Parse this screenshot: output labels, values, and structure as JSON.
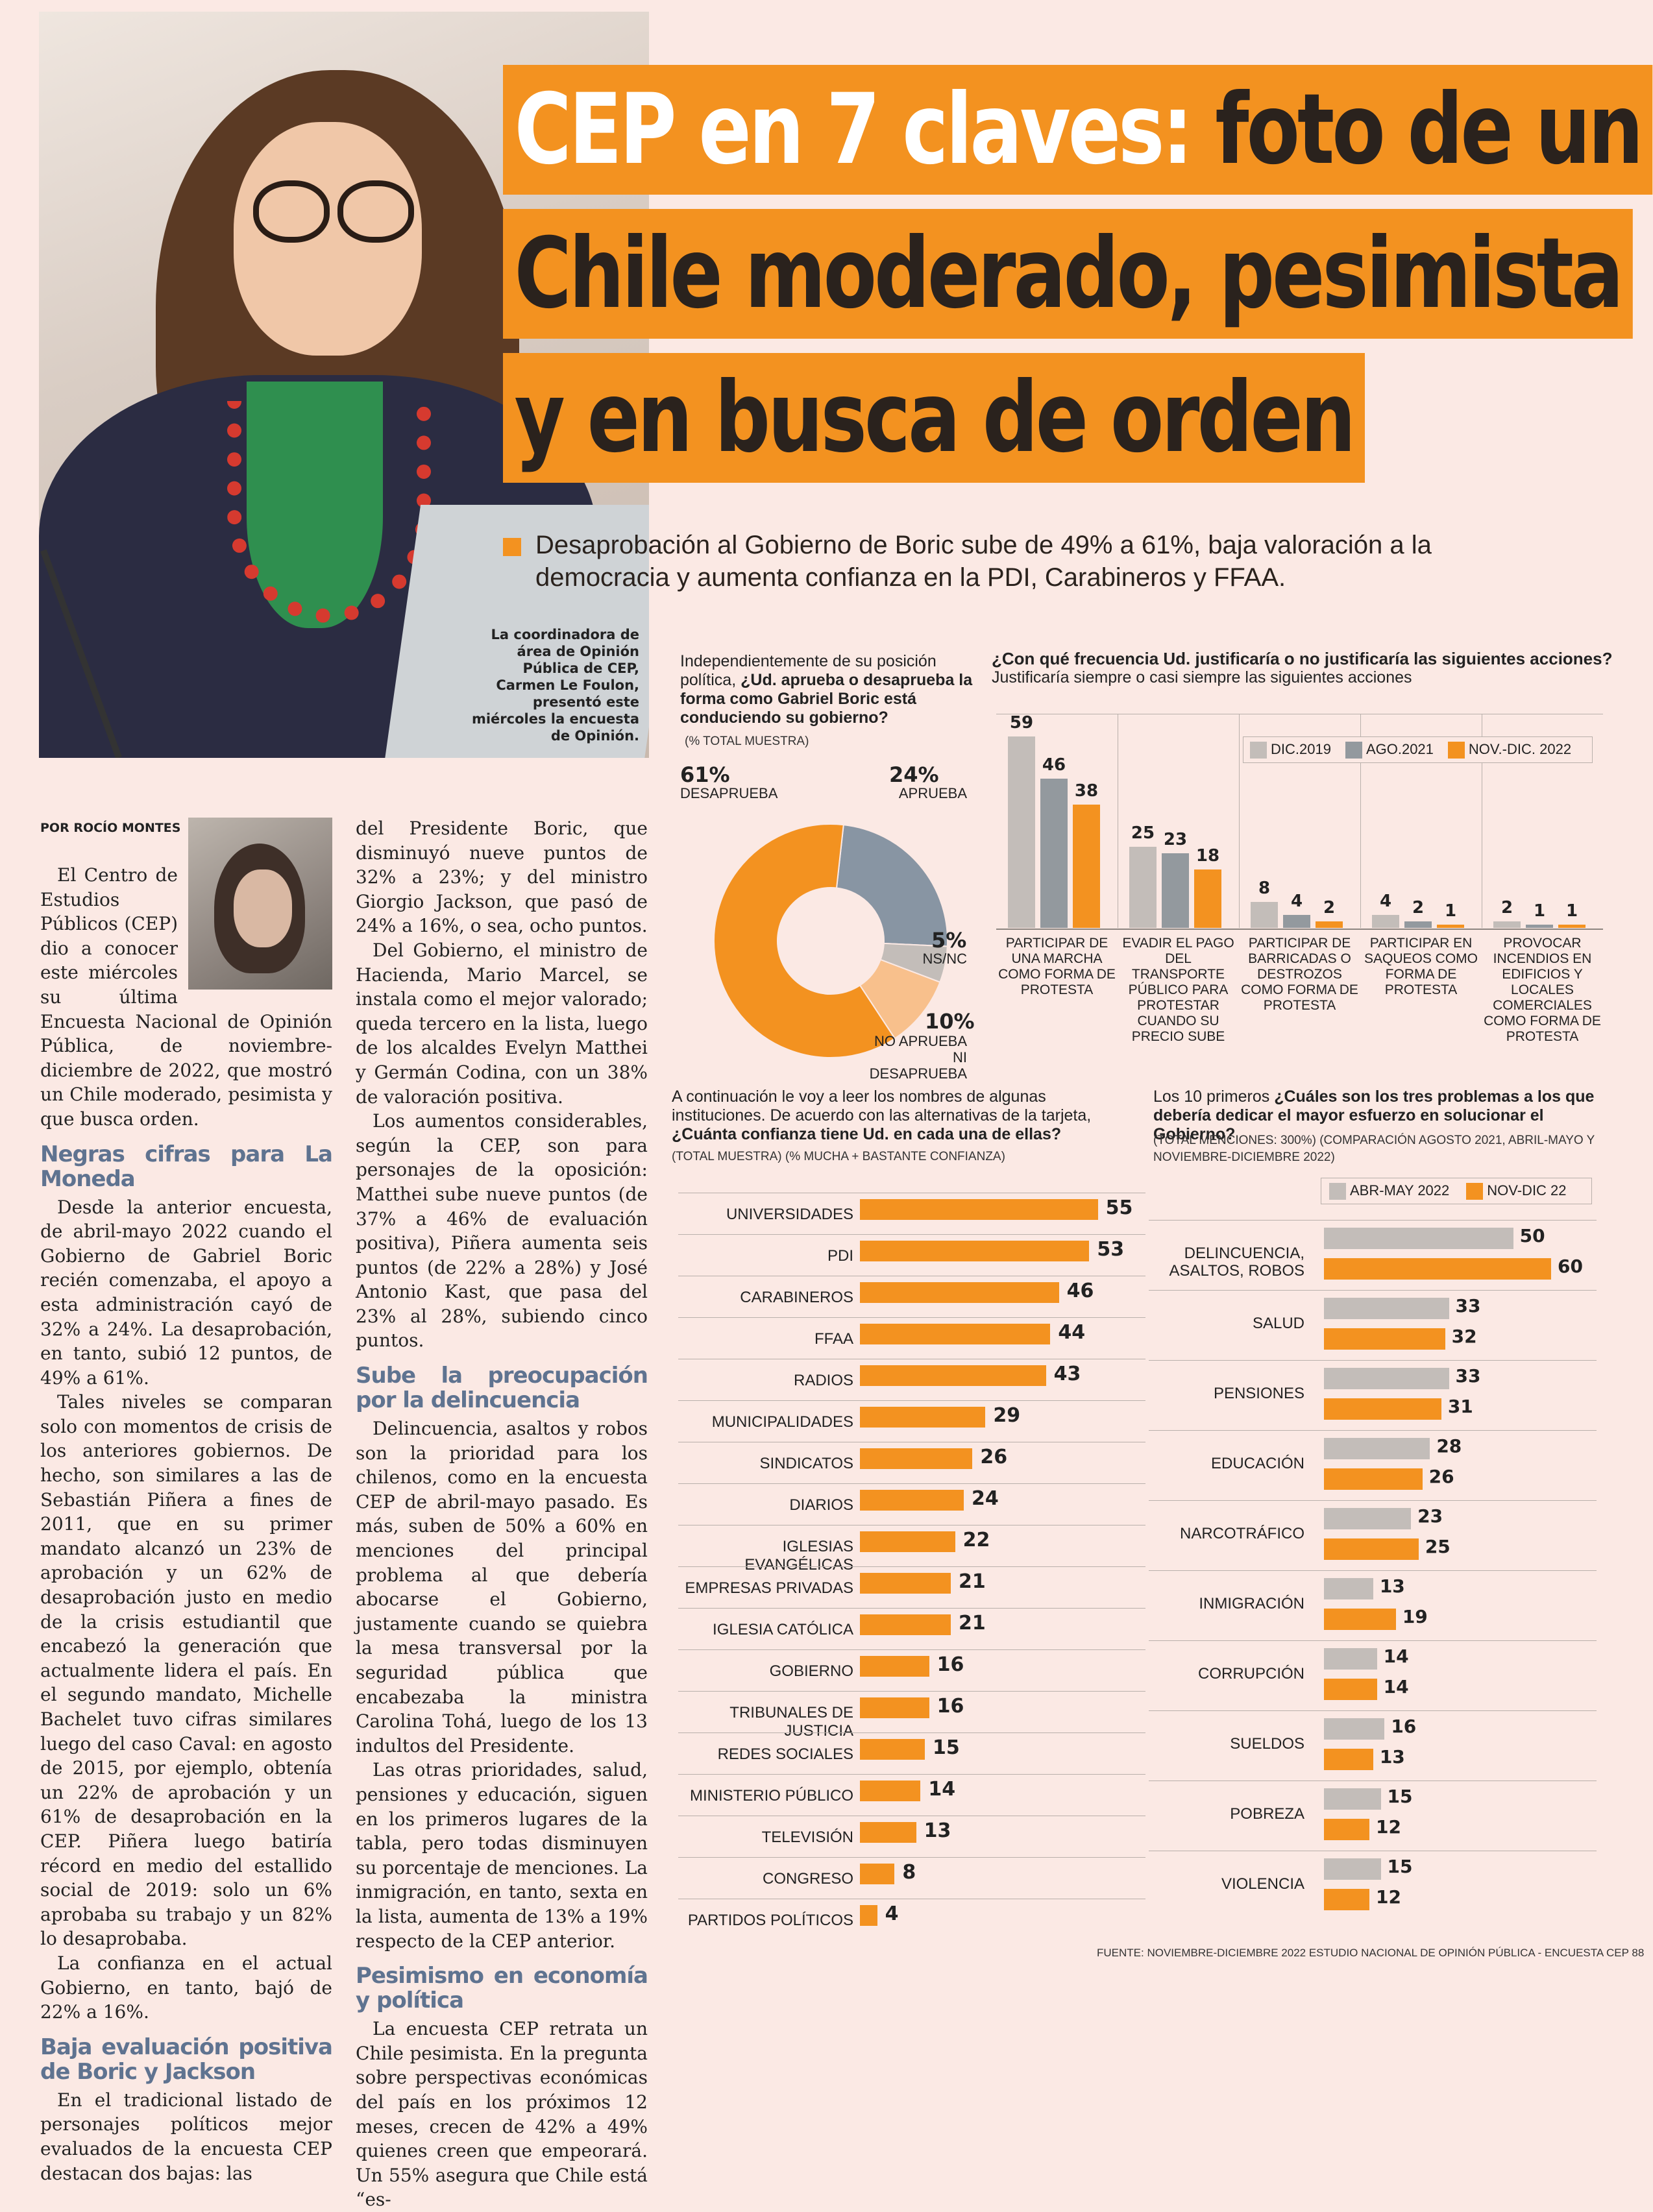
{
  "headline": {
    "line1_white": "CEP en 7 claves:",
    "line1_dark": "foto de un",
    "line2": "Chile moderado, pesimista",
    "line3": "y en busca de orden"
  },
  "subhead": "Desaprobación al Gobierno de Boric sube de 49% a 61%, baja valoración a la democracia y aumenta confianza en la PDI, Carabineros y FFAA.",
  "photo_caption": "La coordinadora de área de Opinión Pública de CEP, Carmen Le Foulon, presentó este miércoles la encuesta de Opinión.",
  "byline": "POR ROCÍO MONTES",
  "article": {
    "col1_p1": "El Centro de Estudios Públicos (CEP) dio a conocer este miércoles su última Encuesta Nacional de Opinión Pública, de noviembre-diciembre de 2022, que mostró un Chile moderado, pesimista y que busca orden.",
    "h_negras": "Negras cifras para La Moneda",
    "col1_p2": "Desde la anterior encuesta, de abril-mayo 2022 cuando el Gobierno de Gabriel Boric recién comenzaba, el apoyo a esta administración cayó de 32% a 24%. La desaprobación, en tanto, subió 12 puntos, de 49% a 61%.",
    "col1_p3": "Tales niveles se comparan solo con momentos de crisis de los anteriores gobiernos. De hecho, son similares a las de Sebastián Piñera a fines de 2011, que en su primer mandato alcanzó un 23% de aprobación y un 62% de desaprobación justo en medio de la crisis estudiantil que encabezó la generación que actualmente lidera el país. En el segundo mandato, Michelle Bachelet tuvo cifras similares luego del caso Caval: en agosto de 2015, por ejemplo, obtenía un 22% de aprobación y un 61% de desaprobación en la CEP. Piñera luego batiría récord en medio del estallido social de 2019: solo un 6% aprobaba su trabajo y un 82% lo desaprobaba.",
    "col1_p4": "La confianza en el actual Gobierno, en tanto, bajó de 22% a 16%.",
    "h_baja": "Baja evaluación positiva de Boric y Jackson",
    "col1_p5": "En el tradicional listado de personajes políticos mejor evaluados de la encuesta CEP destacan dos bajas: las",
    "col2_p1": "del Presidente Boric, que disminuyó nueve puntos de 32% a 23%; y del ministro Giorgio Jackson, que pasó de 24% a 16%, o sea, ocho puntos.",
    "col2_p2": "Del Gobierno, el ministro de Hacienda, Mario Marcel, se instala como el mejor valorado; queda tercero en la lista, luego de los alcaldes Evelyn Matthei y Germán Codina, con un 38% de valoración positiva.",
    "col2_p3": "Los aumentos considerables, según la CEP, son para personajes de la oposición: Matthei sube nueve puntos (de 37% a 46% de evaluación positiva), Piñera aumenta seis puntos (de 22% a 28%) y José Antonio Kast, que pasa del 23% al 28%, subiendo cinco puntos.",
    "h_sube": "Sube la preocupación por la delincuencia",
    "col2_p4": "Delincuencia, asaltos y robos son la prioridad para los chilenos, como en la encuesta CEP de abril-mayo pasado. Es más, suben de 50% a 60% en menciones del principal problema al que debería abocarse el Gobierno, justamente cuando se quiebra la mesa transversal por la seguridad pública que encabezaba la ministra Carolina Tohá, luego de los 13 indultos del Presidente.",
    "col2_p5": "Las otras prioridades, salud, pensiones y educación, siguen en los primeros lugares de la tabla, pero todas disminuyen su porcentaje de menciones. La inmigración, en tanto, sexta en la lista, aumenta de 13% a 19% respecto de la CEP anterior.",
    "h_pesimismo": "Pesimismo en economía y política",
    "col2_p6": "La encuesta CEP retrata un Chile pesimista. En la pregunta sobre perspectivas económicas del país en los próximos 12 meses, crecen de 42% a 49% quienes creen que empeorará. Un 55% asegura que Chile está “es-"
  },
  "colors": {
    "orange": "#f39220",
    "dark_gray": "#93999e",
    "slate": "#8895a3",
    "light_gray": "#c3bdb9",
    "pale_orange": "#f8c08c"
  },
  "chart_data": [
    {
      "type": "pie",
      "title": "Independientemente de su posición política, ¿Ud. aprueba o desaprueba la forma como Gabriel Boric está conduciendo su gobierno?",
      "title_plain": "Independientemente de su posición política,",
      "title_bold": "¿Ud. aprueba o desaprueba la forma como Gabriel Boric está conduciendo su gobierno?",
      "subtitle": "(% TOTAL MUESTRA)",
      "slices": [
        {
          "label": "APRUEBA",
          "value": 24,
          "value_label": "24%",
          "color": "#8895a3"
        },
        {
          "label": "NS/NC",
          "value": 5,
          "value_label": "5%",
          "color": "#c3bdb9"
        },
        {
          "label": "NO APRUEBA NI DESAPRUEBA",
          "value": 10,
          "value_label": "10%",
          "color": "#f8c08c"
        },
        {
          "label": "DESAPRUEBA",
          "value": 61,
          "value_label": "61%",
          "color": "#f39220"
        }
      ]
    },
    {
      "type": "bar",
      "title_bold": "¿Con qué frecuencia Ud. justificaría o no justificaría las siguientes acciones?",
      "subtitle": "Justificaría siempre o casi siempre las siguientes acciones",
      "categories": [
        "PARTICIPAR DE UNA MARCHA COMO FORMA DE PROTESTA",
        "EVADIR EL PAGO DEL TRANSPORTE PÚBLICO PARA PROTESTAR CUANDO SU PRECIO SUBE",
        "PARTICIPAR DE BARRICADAS O DESTROZOS COMO FORMA DE PROTESTA",
        "PARTICIPAR EN SAQUEOS COMO FORMA DE PROTESTA",
        "PROVOCAR INCENDIOS EN EDIFICIOS Y LOCALES COMERCIALES COMO FORMA DE PROTESTA"
      ],
      "series": [
        {
          "name": "DIC.2019",
          "values": [
            59,
            25,
            8,
            4,
            2
          ],
          "color": "#c3bdb9"
        },
        {
          "name": "AGO.2021",
          "values": [
            46,
            23,
            4,
            2,
            1
          ],
          "color": "#93999e"
        },
        {
          "name": "NOV.-DIC. 2022",
          "values": [
            38,
            18,
            2,
            1,
            1
          ],
          "color": "#f39220"
        }
      ],
      "ylim": [
        0,
        60
      ]
    },
    {
      "type": "bar",
      "orientation": "horizontal",
      "title_plain": "A continuación le voy a leer los nombres de algunas instituciones. De acuerdo con las alternativas de la tarjeta,",
      "title_bold": "¿Cuánta confianza tiene Ud. en cada una de ellas?",
      "subtitle": "(TOTAL MUESTRA) (% MUCHA + BASTANTE CONFIANZA)",
      "categories": [
        "UNIVERSIDADES",
        "PDI",
        "CARABINEROS",
        "FFAA",
        "RADIOS",
        "MUNICIPALIDADES",
        "SINDICATOS",
        "DIARIOS",
        "IGLESIAS EVANGÉLICAS",
        "EMPRESAS PRIVADAS",
        "IGLESIA CATÓLICA",
        "GOBIERNO",
        "TRIBUNALES DE JUSTICIA",
        "REDES SOCIALES",
        "MINISTERIO PÚBLICO",
        "TELEVISIÓN",
        "CONGRESO",
        "PARTIDOS POLÍTICOS"
      ],
      "values": [
        55,
        53,
        46,
        44,
        43,
        29,
        26,
        24,
        22,
        21,
        21,
        16,
        16,
        15,
        14,
        13,
        8,
        4
      ],
      "xlim": [
        0,
        60
      ]
    },
    {
      "type": "bar",
      "orientation": "horizontal",
      "title_plain": "Los 10 primeros",
      "title_bold": "¿Cuáles son los tres problemas a los que debería dedicar el mayor esfuerzo en solucionar el Gobierno?",
      "subtitle": "(TOTAL MENCIONES: 300%) (COMPARACIÓN AGOSTO 2021, ABRIL-MAYO Y NOVIEMBRE-DICIEMBRE 2022)",
      "categories": [
        "DELINCUENCIA, ASALTOS, ROBOS",
        "SALUD",
        "PENSIONES",
        "EDUCACIÓN",
        "NARCOTRÁFICO",
        "INMIGRACIÓN",
        "CORRUPCIÓN",
        "SUELDOS",
        "POBREZA",
        "VIOLENCIA"
      ],
      "series": [
        {
          "name": "ABR-MAY 2022",
          "values": [
            50,
            33,
            33,
            28,
            23,
            13,
            14,
            16,
            15,
            15
          ],
          "color": "#c3bdb9"
        },
        {
          "name": "NOV-DIC 22",
          "values": [
            60,
            32,
            31,
            26,
            25,
            19,
            14,
            13,
            12,
            12
          ],
          "color": "#f39220"
        }
      ],
      "xlim": [
        0,
        60
      ]
    }
  ],
  "footer_source": "FUENTE: NOVIEMBRE-DICIEMBRE 2022 ESTUDIO NACIONAL DE OPINIÓN PÚBLICA - ENCUESTA CEP 88"
}
